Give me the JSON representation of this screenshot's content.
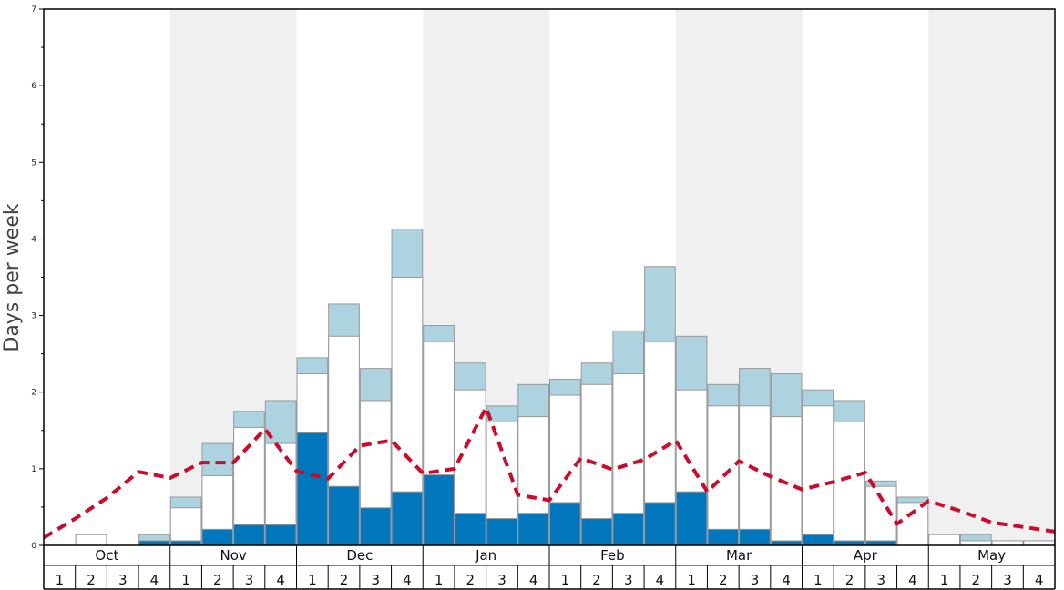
{
  "chart_data": {
    "type": "bar",
    "ylabel": "Days per week",
    "ylim": [
      0,
      7
    ],
    "yticks": [
      0,
      1,
      2,
      3,
      4,
      5,
      6,
      7
    ],
    "months": [
      "Oct",
      "Nov",
      "Dec",
      "Jan",
      "Feb",
      "Mar",
      "Apr",
      "May"
    ],
    "week_labels": [
      "1",
      "2",
      "3",
      "4"
    ],
    "series": [
      {
        "key": "base",
        "values": [
          0.0,
          0.0,
          0.0,
          0.06,
          0.06,
          0.21,
          0.27,
          0.27,
          1.47,
          0.77,
          0.49,
          0.7,
          0.92,
          0.42,
          0.35,
          0.42,
          0.56,
          0.35,
          0.42,
          0.56,
          0.7,
          0.21,
          0.21,
          0.06,
          0.14,
          0.06,
          0.06,
          0.0,
          0.0,
          0.0,
          0.0,
          0.0
        ]
      },
      {
        "key": "middle",
        "values": [
          0.0,
          0.14,
          0.0,
          0.0,
          0.49,
          0.91,
          1.54,
          1.33,
          2.24,
          2.73,
          1.89,
          3.5,
          2.66,
          2.03,
          1.61,
          1.68,
          1.96,
          2.1,
          2.24,
          2.66,
          2.03,
          1.82,
          1.82,
          1.68,
          1.82,
          1.61,
          0.77,
          0.56,
          0.14,
          0.06,
          0.06,
          0.06
        ]
      },
      {
        "key": "top",
        "values": [
          0.0,
          0.14,
          0.0,
          0.14,
          0.63,
          1.33,
          1.75,
          1.89,
          2.45,
          3.15,
          2.31,
          4.13,
          2.87,
          2.38,
          1.82,
          2.1,
          2.17,
          2.38,
          2.8,
          3.64,
          2.73,
          2.1,
          2.31,
          2.24,
          2.03,
          1.89,
          0.84,
          0.63,
          0.14,
          0.14,
          0.06,
          0.06
        ]
      }
    ],
    "line": [
      0.1,
      0.35,
      0.62,
      0.96,
      0.88,
      1.08,
      1.08,
      1.52,
      0.97,
      0.87,
      1.3,
      1.37,
      0.94,
      1.0,
      1.8,
      0.66,
      0.59,
      1.14,
      0.99,
      1.12,
      1.37,
      0.7,
      1.1,
      0.9,
      0.73,
      0.83,
      0.95,
      0.28,
      0.58,
      0.45,
      0.3,
      0.24,
      0.18
    ],
    "colors": {
      "base": "#0277bd",
      "middle": "#ffffff",
      "top": "#add3e0",
      "bar_stroke": "#9a9a9a",
      "line": "#cc0a2a",
      "band": "#f0f0f0",
      "axis": "#000000"
    },
    "grid": false
  }
}
